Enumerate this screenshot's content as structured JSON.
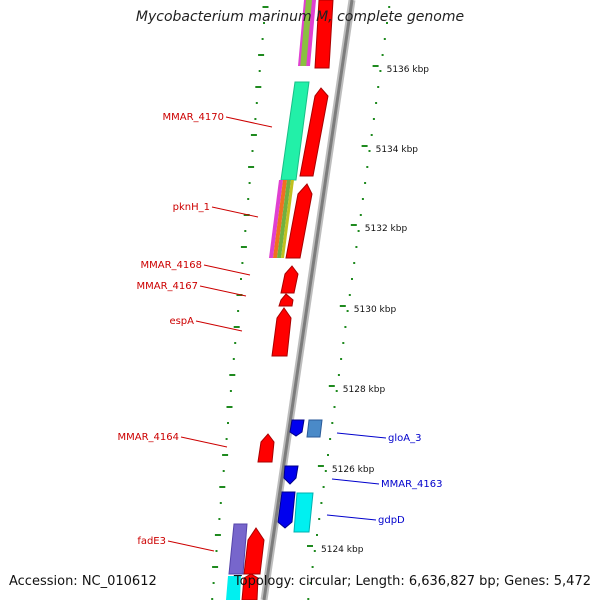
{
  "title": "Mycobacterium marinum M, complete genome",
  "footer": {
    "accession": "Accession: NC_010612",
    "topology": "Topology: circular; Length: 6,636,827 bp; Genes: 5,472"
  },
  "ticks": [
    {
      "label": "5136 kbp",
      "kbp": 5136
    },
    {
      "label": "5134 kbp",
      "kbp": 5134
    },
    {
      "label": "5132 kbp",
      "kbp": 5132
    },
    {
      "label": "5130 kbp",
      "kbp": 5130
    },
    {
      "label": "5128 kbp",
      "kbp": 5128
    },
    {
      "label": "5126 kbp",
      "kbp": 5126
    },
    {
      "label": "5124 kbp",
      "kbp": 5124
    }
  ],
  "genes_left": [
    {
      "name": "MMAR_4170"
    },
    {
      "name": "pknH_1"
    },
    {
      "name": "MMAR_4168"
    },
    {
      "name": "MMAR_4167"
    },
    {
      "name": "espA"
    },
    {
      "name": "MMAR_4164"
    },
    {
      "name": "fadE3"
    }
  ],
  "genes_right": [
    {
      "name": "gloA_3"
    },
    {
      "name": "MMAR_4163"
    },
    {
      "name": "gdpD"
    }
  ],
  "colors": {
    "forward_cds": "#ff0000",
    "reverse_cds": "#0000ee",
    "left_label": "#cc0000",
    "right_label": "#0000cc",
    "backbone": "#8a8a8a",
    "tick_mark": "#1f8a1f",
    "cog_teal": "#22f0a8",
    "cog_cyan": "#00f0f0",
    "cog_steel": "#4a8ac8",
    "cog_purple": "#7766cc"
  }
}
